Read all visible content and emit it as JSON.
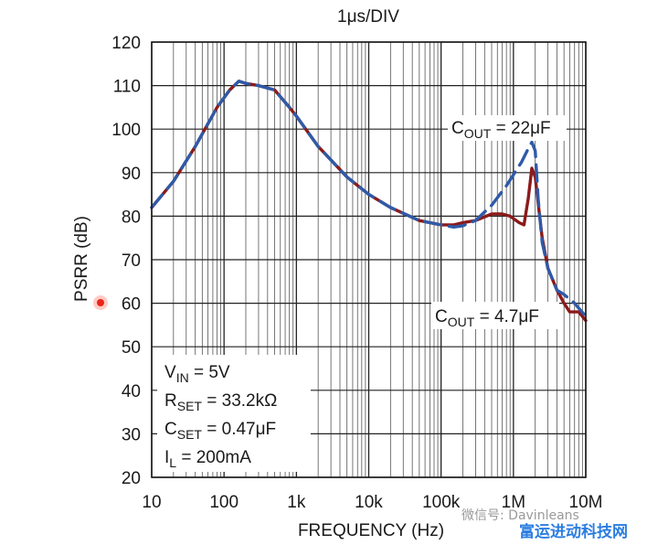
{
  "chart_data": {
    "type": "line",
    "title": "1μs/DIV",
    "xlabel": "FREQUENCY (Hz)",
    "ylabel": "PSRR (dB)",
    "x_scale": "log",
    "xlim": [
      10,
      10000000
    ],
    "ylim": [
      20,
      120
    ],
    "grid": true,
    "x_ticks": [
      10,
      100,
      1000,
      10000,
      100000,
      1000000,
      10000000
    ],
    "x_tick_labels": [
      "10",
      "100",
      "1k",
      "10k",
      "100k",
      "1M",
      "10M"
    ],
    "y_ticks": [
      20,
      30,
      40,
      50,
      60,
      70,
      80,
      90,
      100,
      110,
      120
    ],
    "y_tick_labels": [
      "20",
      "30",
      "40",
      "50",
      "60",
      "70",
      "80",
      "90",
      "100",
      "110",
      "120"
    ],
    "series": [
      {
        "name": "COUT = 22μF",
        "color": "#2f5aa8",
        "style": "dashed",
        "x": [
          10,
          20,
          40,
          80,
          120,
          160,
          200,
          300,
          500,
          800,
          1000,
          2000,
          5000,
          10000,
          20000,
          50000,
          100000,
          150000,
          200000,
          300000,
          500000,
          800000,
          1000000,
          1300000,
          1600000,
          1800000,
          2000000,
          2200000,
          2500000,
          3000000,
          4000000,
          5000000,
          7000000,
          10000000
        ],
        "y": [
          82,
          88,
          96,
          105,
          109,
          111,
          110.5,
          110,
          109,
          105,
          103,
          96,
          89,
          85,
          82,
          79,
          78,
          77.5,
          77.8,
          79,
          82.5,
          87,
          89.5,
          92.5,
          95.5,
          97,
          95,
          84,
          74,
          68,
          63,
          62,
          60,
          57
        ]
      },
      {
        "name": "COUT = 4.7μF",
        "color": "#8b1a1a",
        "style": "solid",
        "x": [
          10,
          20,
          40,
          80,
          120,
          160,
          200,
          300,
          500,
          800,
          1000,
          2000,
          5000,
          10000,
          20000,
          50000,
          100000,
          150000,
          200000,
          300000,
          500000,
          700000,
          900000,
          1200000,
          1400000,
          1600000,
          1800000,
          2000000,
          2200000,
          2500000,
          3000000,
          4000000,
          5000000,
          6000000,
          8000000,
          10000000
        ],
        "y": [
          82,
          88,
          96,
          105,
          109,
          111,
          110.5,
          110,
          109,
          105,
          103,
          96,
          89,
          85,
          82,
          79,
          78,
          78,
          78.5,
          79,
          80.5,
          80.5,
          80,
          78.5,
          78,
          84,
          91,
          89,
          83,
          75,
          68,
          63,
          60,
          58,
          58,
          56
        ]
      }
    ],
    "annotations": [
      {
        "base": "C",
        "sub": "OUT",
        "rest": " = 22μF"
      },
      {
        "base": "C",
        "sub": "OUT",
        "rest": " = 4.7μF"
      }
    ],
    "conditions": [
      {
        "base": "V",
        "sub": "IN",
        "rest": " = 5V"
      },
      {
        "base": "R",
        "sub": "SET",
        "rest": " = 33.2kΩ"
      },
      {
        "base": "C",
        "sub": "SET",
        "rest": " = 0.47μF"
      },
      {
        "base": "I",
        "sub": "L",
        "rest": " = 200mA"
      }
    ]
  },
  "watermark": {
    "line1": "微信号: Davinleans",
    "line2": "富运进动科技网"
  }
}
